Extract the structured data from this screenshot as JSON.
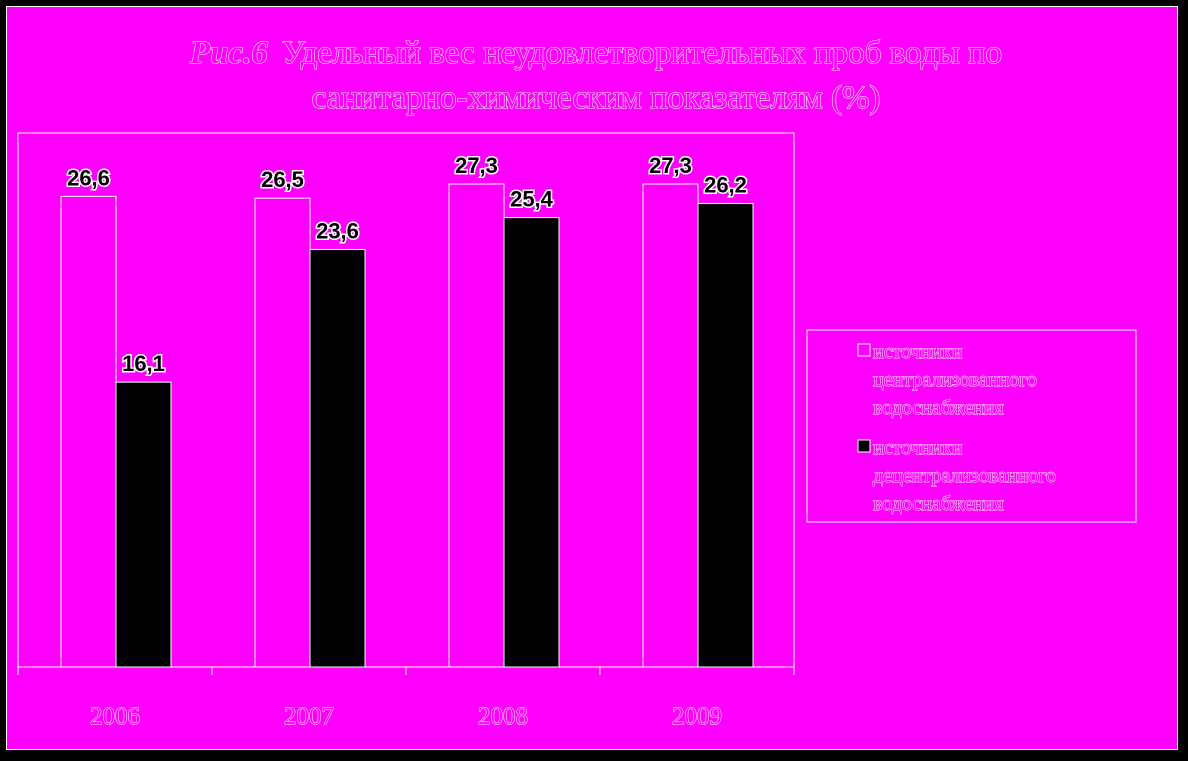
{
  "chart_data": {
    "type": "bar",
    "title_prefix": "Рис.6",
    "title_lines": [
      "Удельный вес неудовлетворительных проб воды по",
      "санитарно-химическим показателям (%)"
    ],
    "categories": [
      "2006",
      "2007",
      "2008",
      "2009"
    ],
    "series": [
      {
        "name": "источники централизованного водоснабжения",
        "name_lines": [
          "источники",
          "централизованного",
          "водоснабжения"
        ],
        "values": [
          26.6,
          26.5,
          27.3,
          27.3
        ],
        "labels": [
          "26,6",
          "26,5",
          "27,3",
          "27,3"
        ],
        "color": "#ff00ff"
      },
      {
        "name": "источники децентрализованного водоснабжения",
        "name_lines": [
          "источники",
          "децентрализованного",
          "водоснабжения"
        ],
        "values": [
          16.1,
          23.6,
          25.4,
          26.2
        ],
        "labels": [
          "16,1",
          "23,6",
          "25,4",
          "26,2"
        ],
        "color": "#000000"
      }
    ],
    "ylim": [
      0,
      27.3
    ],
    "legend_position": "right",
    "colors": {
      "background": "#ff00ff",
      "outer": "#000000",
      "outline": "#ffffff"
    }
  }
}
